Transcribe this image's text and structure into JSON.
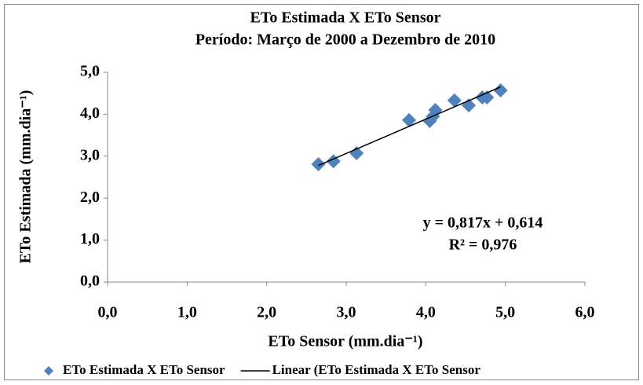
{
  "chart_data": {
    "type": "scatter",
    "title": "ETo Estimada X ETo Sensor",
    "subtitle": "Período: Março de 2000 a Dezembro de 2010",
    "xlabel": "ETo Sensor (mm.dia⁻¹)",
    "ylabel": "ETo Estimada (mm.dia⁻¹)",
    "xlim": [
      0,
      6
    ],
    "ylim": [
      0,
      5
    ],
    "xticks": [
      {
        "value": 0,
        "label": "0,0"
      },
      {
        "value": 1,
        "label": "1,0"
      },
      {
        "value": 2,
        "label": "2,0"
      },
      {
        "value": 3,
        "label": "3,0"
      },
      {
        "value": 4,
        "label": "4,0"
      },
      {
        "value": 5,
        "label": "5,0"
      },
      {
        "value": 6,
        "label": "6,0"
      }
    ],
    "yticks": [
      {
        "value": 0,
        "label": "0,0"
      },
      {
        "value": 1,
        "label": "1,0"
      },
      {
        "value": 2,
        "label": "2,0"
      },
      {
        "value": 3,
        "label": "3,0"
      },
      {
        "value": 4,
        "label": "4,0"
      },
      {
        "value": 5,
        "label": "5,0"
      }
    ],
    "series": [
      {
        "name": "ETo Estimada X ETo Sensor",
        "color": "#4f81bd",
        "x": [
          2.65,
          2.84,
          3.13,
          3.79,
          4.05,
          4.09,
          4.12,
          4.36,
          4.54,
          4.71,
          4.77,
          4.94
        ],
        "values": [
          2.81,
          2.88,
          3.07,
          3.86,
          3.84,
          3.95,
          4.1,
          4.33,
          4.21,
          4.4,
          4.4,
          4.57
        ]
      },
      {
        "name": "Linear (ETo Estimada X ETo Sensor",
        "color": "#000000",
        "line": true,
        "x": [
          2.65,
          4.94
        ],
        "values": [
          2.779,
          4.65
        ]
      }
    ],
    "annotations": [
      "y = 0,817x + 0,614",
      "R² = 0,976"
    ],
    "legend": "bottom"
  }
}
